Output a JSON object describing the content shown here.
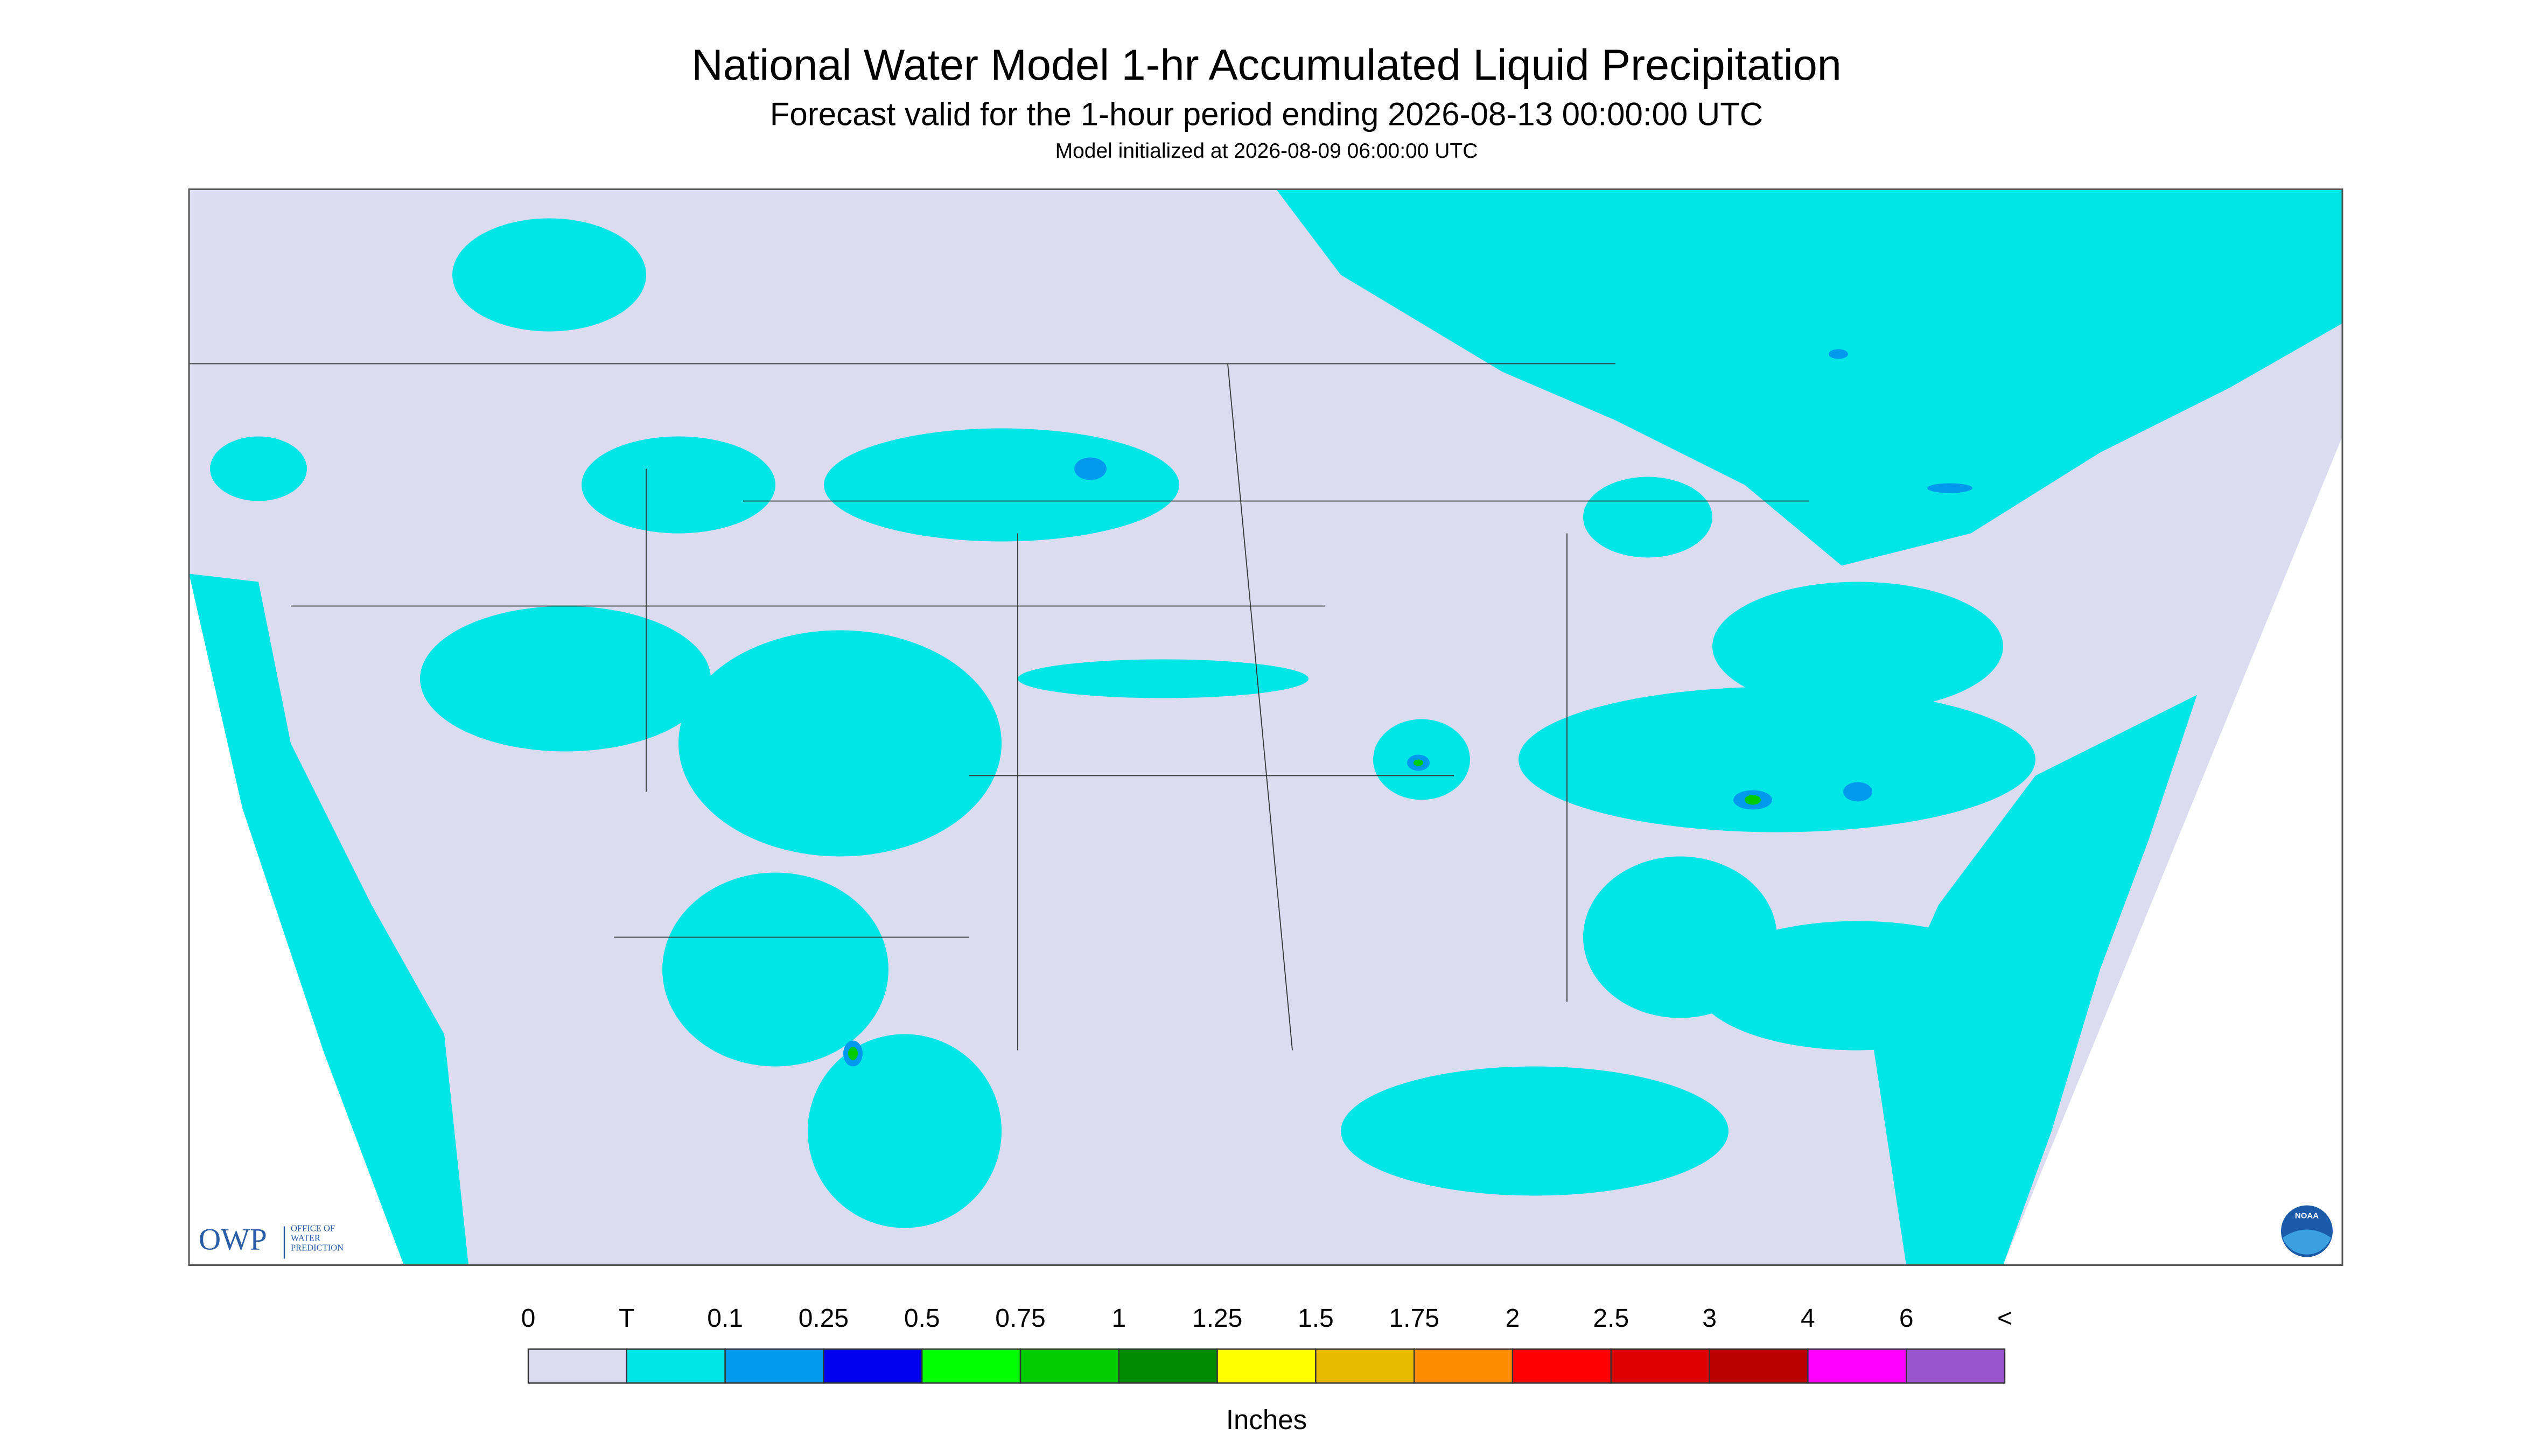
{
  "header": {
    "title": "National Water Model 1-hr Accumulated Liquid Precipitation",
    "subtitle": "Forecast valid for the 1-hour period ending 2026-08-13 00:00:00 UTC",
    "initialized": "Model initialized at 2026-08-09 06:00:00 UTC"
  },
  "legend": {
    "labels": [
      "0",
      "T",
      "0.1",
      "0.25",
      "0.5",
      "0.75",
      "1",
      "1.25",
      "1.5",
      "1.75",
      "2",
      "2.5",
      "3",
      "4",
      "6",
      "<"
    ],
    "colors": [
      "#dcdcf0",
      "#00e6e6",
      "#0099ee",
      "#0000ee",
      "#00ff00",
      "#00cc00",
      "#008a00",
      "#ffff00",
      "#e6bb00",
      "#ff8c00",
      "#ff0000",
      "#dd0000",
      "#bb0000",
      "#ff00ff",
      "#9955cc"
    ],
    "unit": "Inches"
  },
  "logos": {
    "owp": "OWP",
    "owp_text": [
      "OFFICE OF",
      "WATER",
      "PREDICTION"
    ],
    "noaa": "NOAA"
  }
}
